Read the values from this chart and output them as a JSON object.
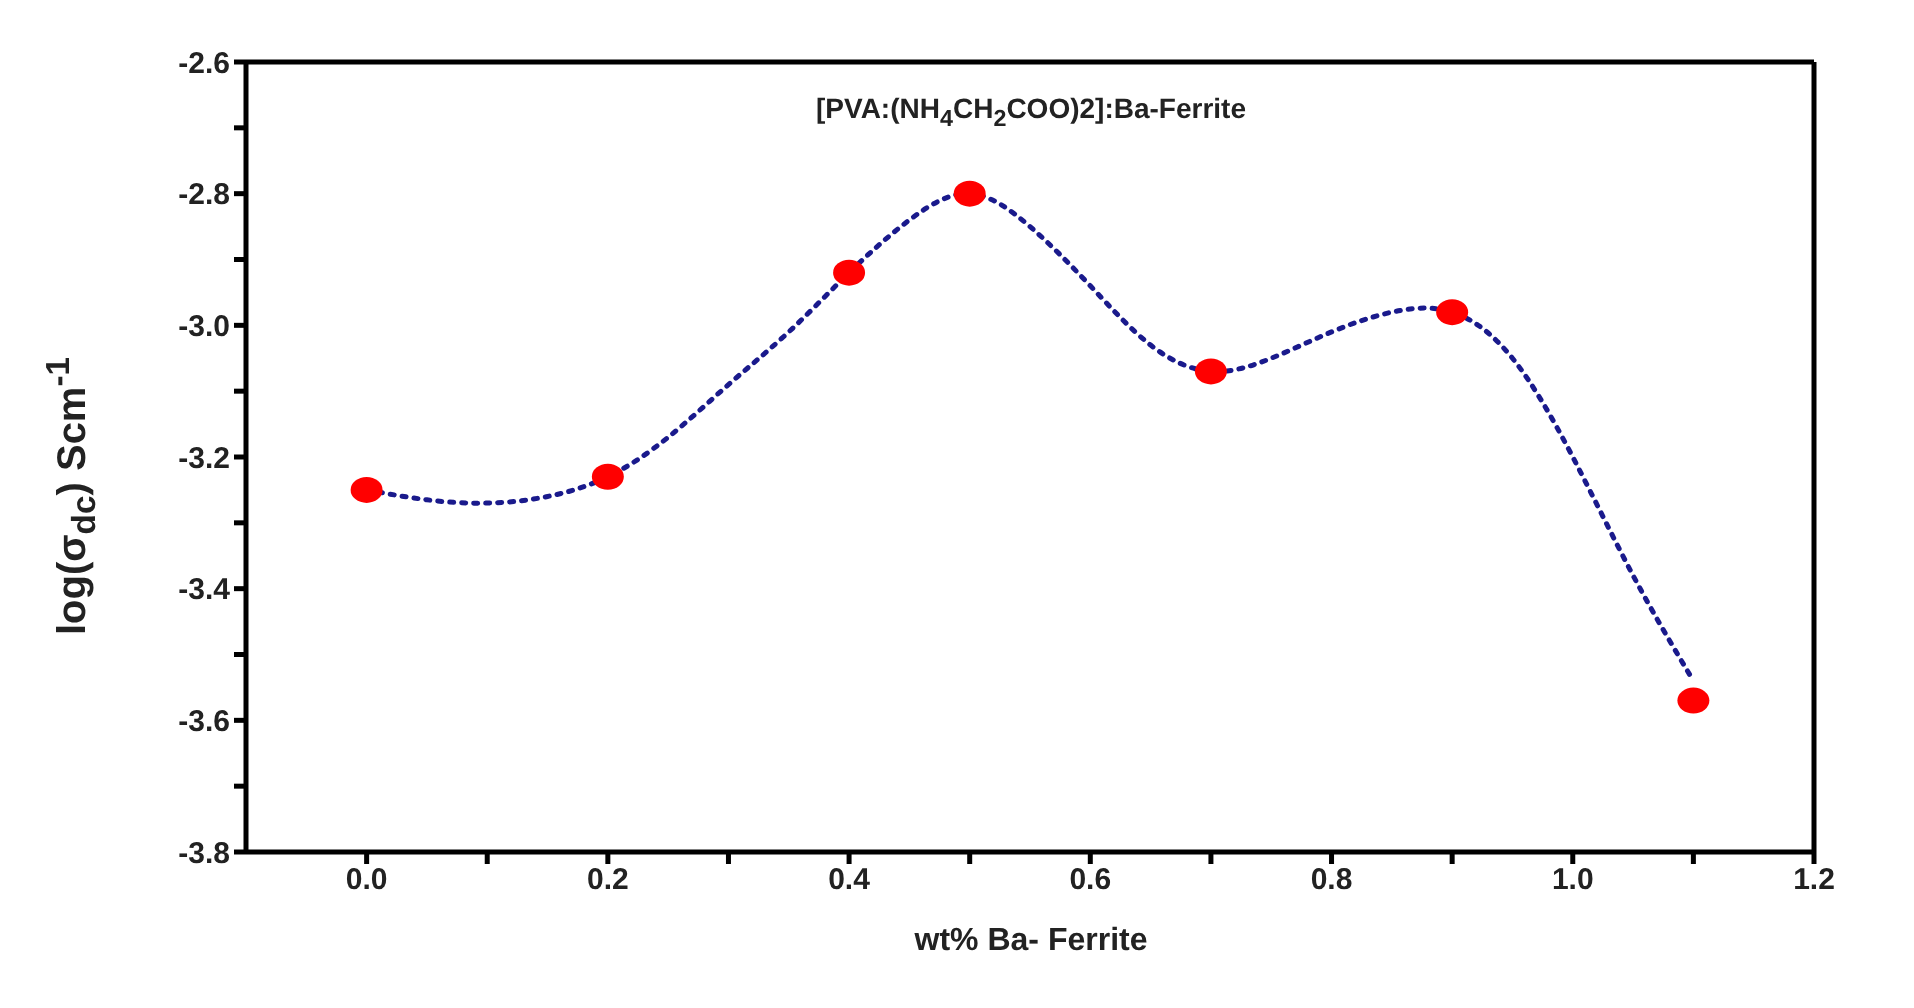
{
  "chart_data": {
    "type": "scatter",
    "title": "[PVA:(NH$_{4}$CH$_{2}$COO)2]:Ba-Ferrite",
    "xlabel": "wt% Ba- Ferrite",
    "ylabel": "log(σ$_{dc}$) Scm$^{-1}$",
    "x": [
      0.0,
      0.2,
      0.4,
      0.5,
      0.7,
      0.9,
      1.1
    ],
    "series": [
      {
        "color": "#ff0000",
        "marker": "circle",
        "values": [
          -3.25,
          -3.23,
          -2.92,
          -2.8,
          -3.07,
          -2.98,
          -3.57
        ]
      },
      {
        "type": "line",
        "color": "#1a1a8c",
        "line_style": "dotted",
        "marker": "none",
        "x": [
          0.0,
          0.05,
          0.1,
          0.15,
          0.2,
          0.25,
          0.3,
          0.35,
          0.4,
          0.45,
          0.5,
          0.55,
          0.6,
          0.65,
          0.7,
          0.75,
          0.8,
          0.85,
          0.9,
          0.95,
          1.0,
          1.05,
          1.1
        ],
        "values": [
          -3.25,
          -3.265,
          -3.27,
          -3.26,
          -3.23,
          -3.17,
          -3.09,
          -3.01,
          -2.92,
          -2.84,
          -2.8,
          -2.85,
          -2.94,
          -3.03,
          -3.07,
          -3.05,
          -3.01,
          -2.98,
          -2.98,
          -3.05,
          -3.2,
          -3.38,
          -3.54
        ]
      }
    ],
    "xlim": [
      -0.1,
      1.2
    ],
    "ylim": [
      -3.8,
      -2.6
    ],
    "xticks": [
      {
        "value": 0,
        "label": "0.0"
      },
      {
        "value": 0.1,
        "label": null
      },
      {
        "value": 0.2,
        "label": "0.2"
      },
      {
        "value": 0.3,
        "label": null
      },
      {
        "value": 0.4,
        "label": "0.4"
      },
      {
        "value": 0.5,
        "label": null
      },
      {
        "value": 0.6,
        "label": "0.6"
      },
      {
        "value": 0.7,
        "label": null
      },
      {
        "value": 0.8,
        "label": "0.8"
      },
      {
        "value": 0.9,
        "label": null
      },
      {
        "value": 1.0,
        "label": "1.0"
      },
      {
        "value": 1.1,
        "label": null
      },
      {
        "value": 1.2,
        "label": "1.2"
      }
    ],
    "yticks": [
      {
        "value": -3.8,
        "label": "-3.8"
      },
      {
        "value": -3.7,
        "label": null
      },
      {
        "value": -3.6,
        "label": "-3.6"
      },
      {
        "value": -3.5,
        "label": null
      },
      {
        "value": -3.4,
        "label": "-3.4"
      },
      {
        "value": -3.3,
        "label": null
      },
      {
        "value": -3.2,
        "label": "-3.2"
      },
      {
        "value": -3.1,
        "label": null
      },
      {
        "value": -3.0,
        "label": "-3.0"
      },
      {
        "value": -2.9,
        "label": null
      },
      {
        "value": -2.8,
        "label": "-2.8"
      },
      {
        "value": -2.7,
        "label": null
      },
      {
        "value": -2.6,
        "label": "-2.6"
      }
    ]
  }
}
